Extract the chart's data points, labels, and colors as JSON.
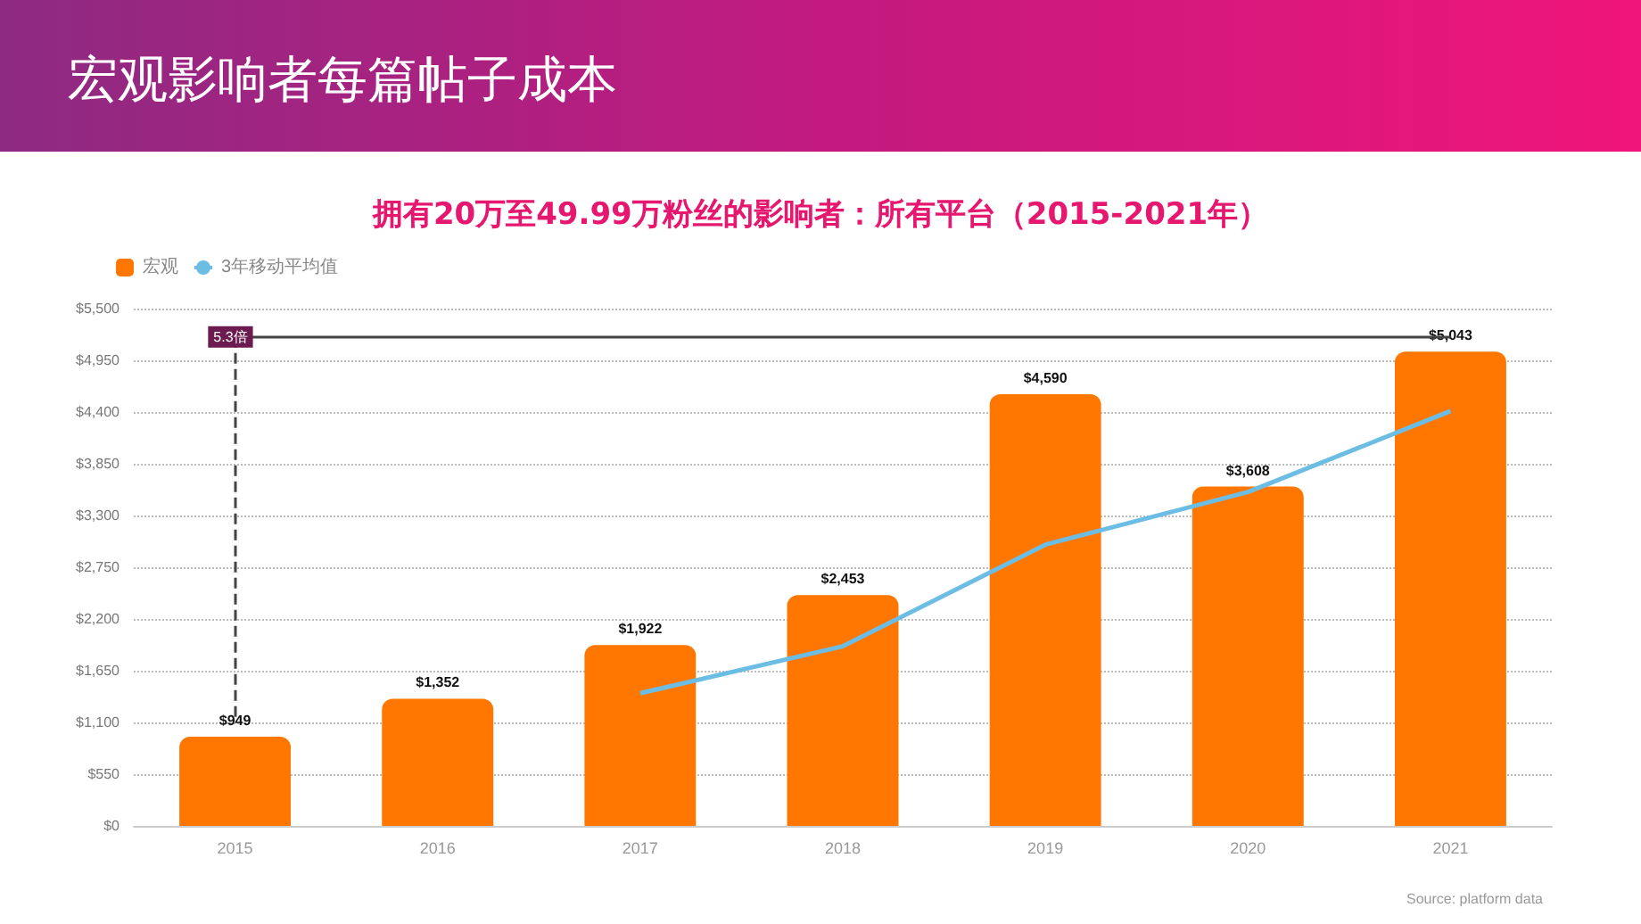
{
  "chart_data": {
    "type": "bar",
    "title": "宏观影响者每篇帖子成本",
    "subtitle": "拥有20万至49.99万粉丝的影响者：所有平台（2015-2021年）",
    "categories": [
      "2015",
      "2016",
      "2017",
      "2018",
      "2019",
      "2020",
      "2021"
    ],
    "series": [
      {
        "name": "宏观",
        "color": "#ff7700",
        "values": [
          949,
          1352,
          1922,
          2453,
          4590,
          3608,
          5043
        ],
        "value_labels": [
          "$949",
          "$1,352",
          "$1,922",
          "$2,453",
          "$4,590",
          "$3,608",
          "$5,043"
        ]
      },
      {
        "name": "3年移动平均值",
        "type": "line",
        "color": "#6bbde3",
        "values": [
          null,
          null,
          1410,
          1910,
          2990,
          3550,
          4410
        ]
      }
    ],
    "ylim": [
      0,
      5500
    ],
    "yticks": [
      {
        "value": 0,
        "label": "$0"
      },
      {
        "value": 550,
        "label": "$550"
      },
      {
        "value": 1100,
        "label": "$1,100"
      },
      {
        "value": 1650,
        "label": "$1,650"
      },
      {
        "value": 2200,
        "label": "$2,200"
      },
      {
        "value": 2750,
        "label": "$2,750"
      },
      {
        "value": 3300,
        "label": "$3,300"
      },
      {
        "value": 3850,
        "label": "$3,850"
      },
      {
        "value": 4400,
        "label": "$4,400"
      },
      {
        "value": 4950,
        "label": "$4,950"
      },
      {
        "value": 5500,
        "label": "$5,500"
      }
    ],
    "ref_lines": [
      {
        "axis": "y",
        "value": 5200,
        "label": "5.3倍",
        "color": "#444444"
      }
    ],
    "grid": "y",
    "legend": "top left",
    "marker": "none",
    "annotations": [
      "Source: platform data"
    ]
  }
}
